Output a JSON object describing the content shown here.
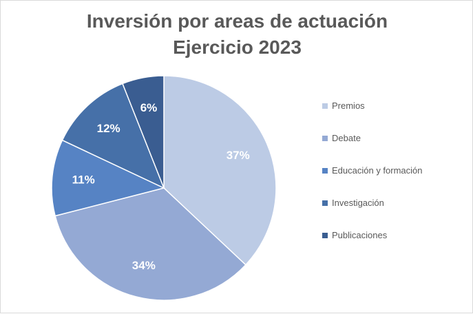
{
  "chart_data": {
    "type": "pie",
    "title": [
      "Inversión por areas de actuación",
      "Ejercicio 2023"
    ],
    "slices": [
      {
        "name": "Premios",
        "value": 37,
        "label": "37%",
        "color": "#bccbe5"
      },
      {
        "name": "Debate",
        "value": 34,
        "label": "34%",
        "color": "#94a9d4"
      },
      {
        "name": "Educación y formación",
        "value": 11,
        "label": "11%",
        "color": "#5683c4"
      },
      {
        "name": "Investigación",
        "value": 12,
        "label": "12%",
        "color": "#4670a8"
      },
      {
        "name": "Publicaciones",
        "value": 6,
        "label": "6%",
        "color": "#3a5d91"
      }
    ],
    "legend_position": "right"
  }
}
